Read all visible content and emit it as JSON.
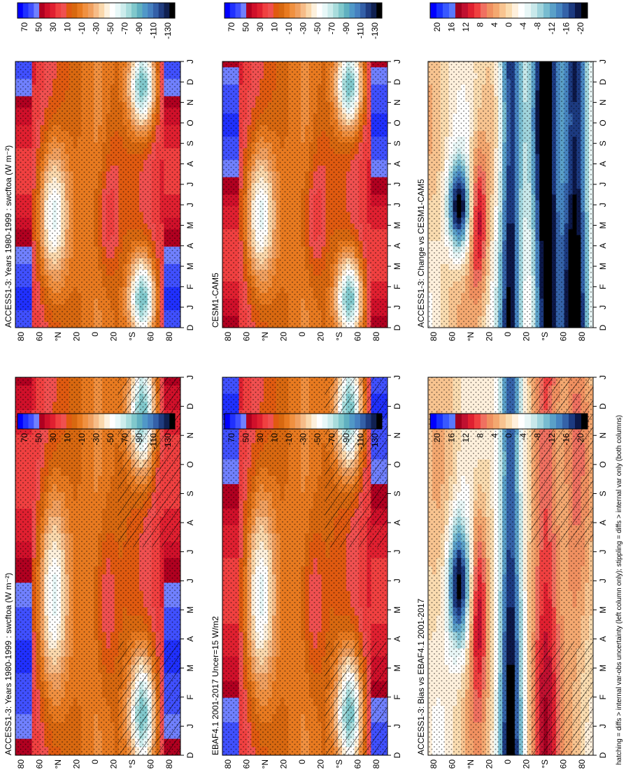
{
  "figure": {
    "footer": "hatching = diffs > internal var-obs uncertainty (left column only); stippling = diffs > internal var only (both columns)"
  },
  "chart_data": [
    {
      "type": "heatmap",
      "title": "ACCESS1-3: Years 1980-1999 : swcftoa (W m⁻²)",
      "x_ticks": [
        "D",
        "J",
        "F",
        "M",
        "A",
        "M",
        "J",
        "J",
        "A",
        "S",
        "O",
        "N",
        "D",
        "J"
      ],
      "y_ticks": [
        "80",
        "60",
        "°N",
        "20",
        "0",
        "20",
        "°S",
        "60",
        "80"
      ],
      "colorbar_labels": [
        "70",
        "50",
        "30",
        "10",
        "-10",
        "-30",
        "-50",
        "-70",
        "-90",
        "-110",
        "-130"
      ],
      "stippling": true,
      "hatching": true
    },
    {
      "type": "heatmap",
      "title": "ACCESS1-3: Years 1980-1999 : swcftoa (W m⁻²)",
      "x_ticks": [
        "D",
        "J",
        "F",
        "M",
        "A",
        "M",
        "J",
        "J",
        "A",
        "S",
        "O",
        "N",
        "D",
        "J"
      ],
      "y_ticks": [
        "80",
        "60",
        "°N",
        "20",
        "0",
        "20",
        "°S",
        "60",
        "80"
      ],
      "colorbar_labels": [
        "70",
        "50",
        "30",
        "10",
        "-10",
        "-30",
        "-50",
        "-70",
        "-90",
        "-110",
        "-130"
      ],
      "stippling": true,
      "hatching": false
    },
    {
      "type": "heatmap",
      "title": "EBAF4.1 2001-2017 Uncer=15 W/m2",
      "x_ticks": [
        "D",
        "J",
        "F",
        "M",
        "A",
        "M",
        "J",
        "J",
        "A",
        "S",
        "O",
        "N",
        "D",
        "J"
      ],
      "y_ticks": [
        "80",
        "60",
        "°N",
        "20",
        "0",
        "20",
        "°S",
        "60",
        "80"
      ],
      "colorbar_labels": [
        "70",
        "50",
        "30",
        "10",
        "-10",
        "-30",
        "-50",
        "-70",
        "-90",
        "-110",
        "-130"
      ],
      "stippling": true,
      "hatching": true
    },
    {
      "type": "heatmap",
      "title": "CESM1-CAM5",
      "x_ticks": [
        "D",
        "J",
        "F",
        "M",
        "A",
        "M",
        "J",
        "J",
        "A",
        "S",
        "O",
        "N",
        "D",
        "J"
      ],
      "y_ticks": [
        "80",
        "60",
        "°N",
        "20",
        "0",
        "20",
        "°S",
        "60",
        "80"
      ],
      "colorbar_labels": [
        "70",
        "50",
        "30",
        "10",
        "-10",
        "-30",
        "-50",
        "-70",
        "-90",
        "-110",
        "-130"
      ],
      "stippling": true,
      "hatching": false
    },
    {
      "type": "heatmap",
      "title": "ACCESS1-3: Bias vs EBAF4.1 2001-2017",
      "x_ticks": [
        "D",
        "J",
        "F",
        "M",
        "A",
        "M",
        "J",
        "J",
        "A",
        "S",
        "O",
        "N",
        "D",
        "J"
      ],
      "y_ticks": [
        "80",
        "60",
        "°N",
        "20",
        "0",
        "20",
        "°S",
        "60",
        "80"
      ],
      "colorbar_labels": [
        "20",
        "16",
        "12",
        "8",
        "4",
        "0",
        "-4",
        "-8",
        "-12",
        "-16",
        "-20"
      ],
      "stippling": true,
      "hatching": true
    },
    {
      "type": "heatmap",
      "title": "ACCESS1-3: Change vs CESM1-CAM5",
      "x_ticks": [
        "D",
        "J",
        "F",
        "M",
        "A",
        "M",
        "J",
        "J",
        "A",
        "S",
        "O",
        "N",
        "D",
        "J"
      ],
      "y_ticks": [
        "80",
        "60",
        "°N",
        "20",
        "0",
        "20",
        "°S",
        "60",
        "80"
      ],
      "colorbar_labels": [
        "20",
        "16",
        "12",
        "8",
        "4",
        "0",
        "-4",
        "-8",
        "-12",
        "-16",
        "-20"
      ],
      "stippling": true,
      "hatching": false
    }
  ],
  "palettes": {
    "absolute": [
      "#0000ff",
      "#2030ff",
      "#4050ff",
      "#7080ff",
      "#b00020",
      "#d0102a",
      "#e02030",
      "#f04040",
      "#f05050",
      "#e05a10",
      "#d86810",
      "#e87a20",
      "#f09040",
      "#f0a060",
      "#f6bc88",
      "#fad8ac",
      "#fdf0dc",
      "#ffffff",
      "#e8f8f8",
      "#ccecec",
      "#a8dcdc",
      "#80c8cc",
      "#60b0c0",
      "#5098c8",
      "#4680c0",
      "#3460a8",
      "#203c80",
      "#102050",
      "#000000"
    ],
    "difference": [
      "#0000ff",
      "#1830ff",
      "#3858ff",
      "#5878ff",
      "#a00020",
      "#c01030",
      "#e02030",
      "#f04040",
      "#f07060",
      "#f09060",
      "#f4a870",
      "#f8c490",
      "#fadcb0",
      "#fff0dc",
      "#ffffff",
      "#e8f6f6",
      "#c8e8ea",
      "#a0d4dc",
      "#78bcd0",
      "#5aa0c8",
      "#4684c0",
      "#3462a8",
      "#1c3a80",
      "#0c1848",
      "#000000"
    ],
    "map": {
      "strong_blue": "#0000ff",
      "deep_red": "#d01020",
      "red": "#f04040",
      "orange": "#d86810",
      "light_orange": "#f0a060",
      "tan": "#f6bc88",
      "cream": "#fad8ac",
      "light_cyan": "#cdeeee",
      "teal": "#7ccad0",
      "mid_blue": "#4a88c8",
      "dark_blue": "#22409a",
      "black": "#000000"
    }
  }
}
